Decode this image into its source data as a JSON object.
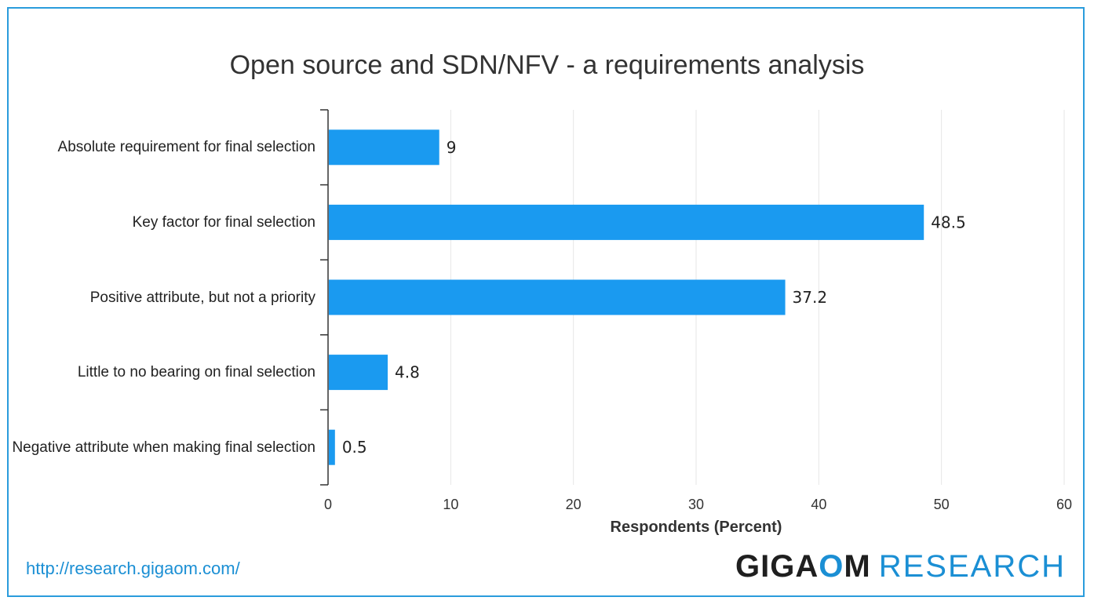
{
  "chart_data": {
    "type": "bar",
    "orientation": "horizontal",
    "title": "Open source and SDN/NFV - a requirements analysis",
    "xlabel": "Respondents (Percent)",
    "ylabel": "",
    "categories": [
      "Absolute requirement for final selection",
      "Key factor for final selection",
      "Positive attribute, but not a priority",
      "Little to no bearing on final selection",
      "Negative attribute when making final selection"
    ],
    "values": [
      9,
      48.5,
      37.2,
      4.8,
      0.5
    ],
    "value_labels": [
      "9",
      "48.5",
      "37.2",
      "4.8",
      "0.5"
    ],
    "xlim": [
      0,
      60
    ],
    "x_ticks": [
      "0",
      "10",
      "20",
      "30",
      "40",
      "50",
      "60"
    ],
    "grid": "vertical",
    "bar_color": "#1a9af0"
  },
  "footer": {
    "url": "http://research.gigaom.com/",
    "brand_part1": "GIGA",
    "brand_o": "O",
    "brand_part2": "M",
    "brand_research": "RESEARCH"
  }
}
